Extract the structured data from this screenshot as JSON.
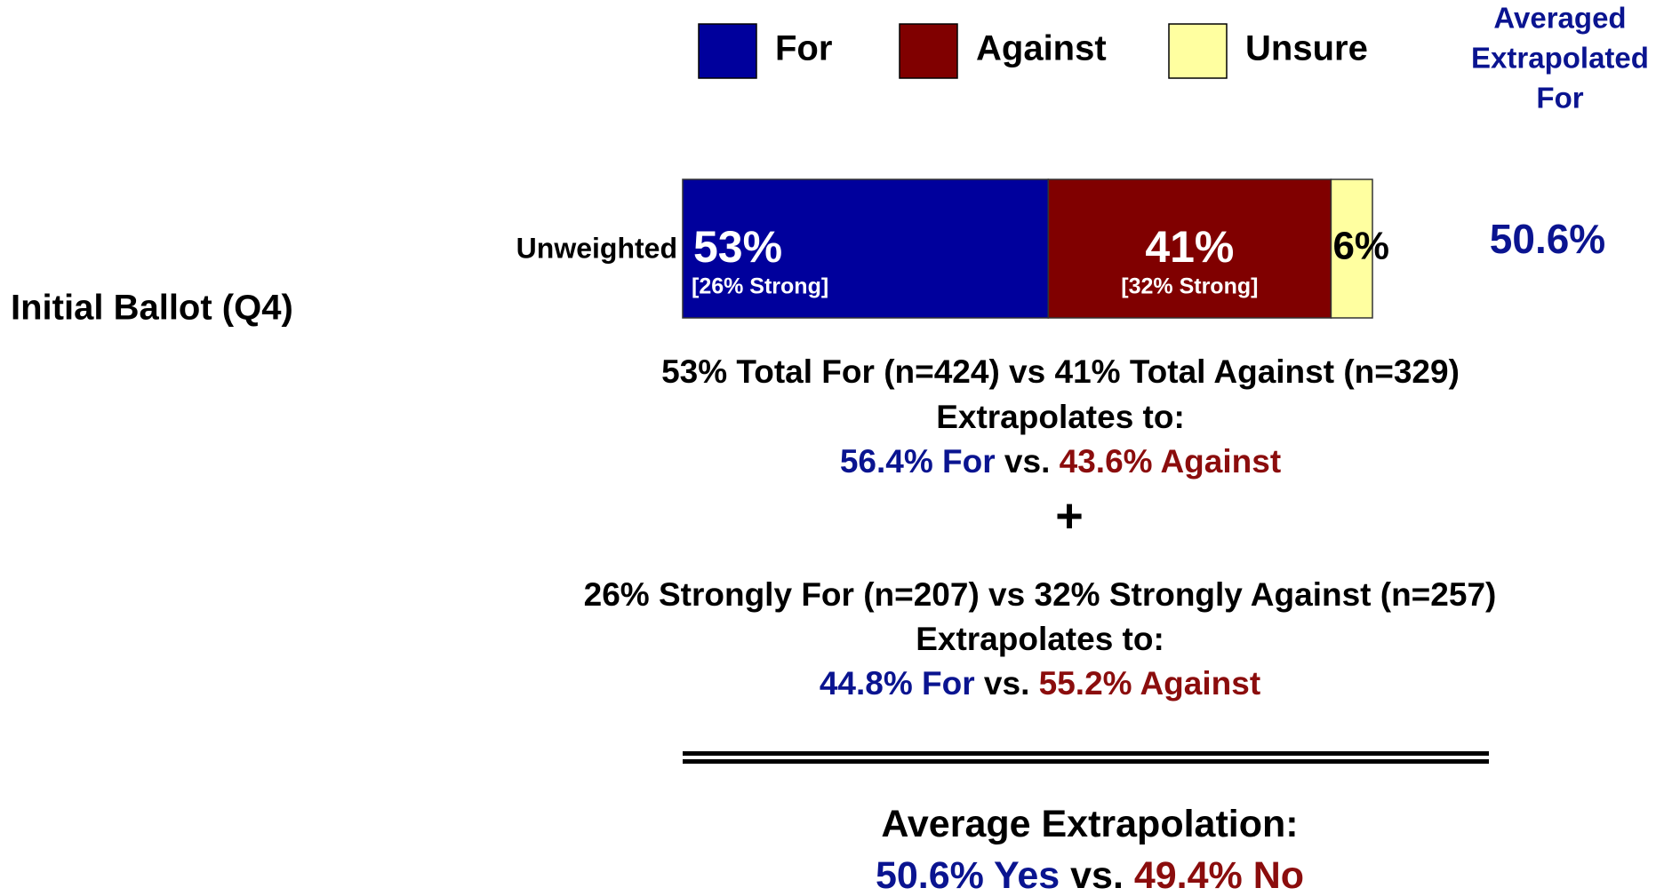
{
  "chart_data": {
    "type": "bar",
    "orientation": "horizontal",
    "stacked": true,
    "legend": "top",
    "row_label": "Initial Ballot (Q4)",
    "categories": [
      "Unweighted"
    ],
    "series": [
      {
        "name": "For",
        "color": "#00009c",
        "values": [
          53
        ],
        "value_labels": [
          "53%"
        ],
        "sub_labels": [
          "[26% Strong]"
        ],
        "label_color": "#ffffff"
      },
      {
        "name": "Against",
        "color": "#800000",
        "values": [
          41
        ],
        "value_labels": [
          "41%"
        ],
        "sub_labels": [
          "[32% Strong]"
        ],
        "label_color": "#ffffff"
      },
      {
        "name": "Unsure",
        "color": "#ffffa0",
        "values": [
          6
        ],
        "value_labels": [
          "6%"
        ],
        "label_color": "#000000"
      }
    ],
    "extra_column": {
      "header": [
        "Averaged",
        "Extrapolated",
        "For"
      ],
      "values": [
        50.6
      ],
      "value_labels": [
        "50.6%"
      ],
      "color": "#0a1490"
    }
  },
  "annotations": [
    {
      "lines": [
        [
          {
            "text": "53% Total For (n=424) vs 41% Total Against (n=329)",
            "color": "#000000"
          }
        ],
        [
          {
            "text": "Extrapolates to:",
            "color": "#000000"
          }
        ],
        [
          {
            "text": "56.4% For",
            "color": "#0a1490"
          },
          {
            "text": " vs. ",
            "color": "#000000"
          },
          {
            "text": "43.6% Against",
            "color": "#8b0d0d"
          }
        ]
      ]
    },
    {
      "lines": [
        [
          {
            "text": "+",
            "color": "#000000"
          }
        ]
      ]
    },
    {
      "lines": [
        [
          {
            "text": "26% Strongly For (n=207) vs 32% Strongly Against (n=257)",
            "color": "#000000"
          }
        ],
        [
          {
            "text": "Extrapolates to:",
            "color": "#000000"
          }
        ],
        [
          {
            "text": "44.8% For",
            "color": "#0a1490"
          },
          {
            "text": " vs. ",
            "color": "#000000"
          },
          {
            "text": "55.2% Against",
            "color": "#8b0d0d"
          }
        ]
      ]
    },
    {
      "lines": [
        [
          {
            "text": "Average Extrapolation:",
            "color": "#000000"
          }
        ],
        [
          {
            "text": "50.6% Yes",
            "color": "#0a1490"
          },
          {
            "text": " vs. ",
            "color": "#000000"
          },
          {
            "text": "49.4% No",
            "color": "#8b0d0d"
          }
        ]
      ]
    }
  ]
}
